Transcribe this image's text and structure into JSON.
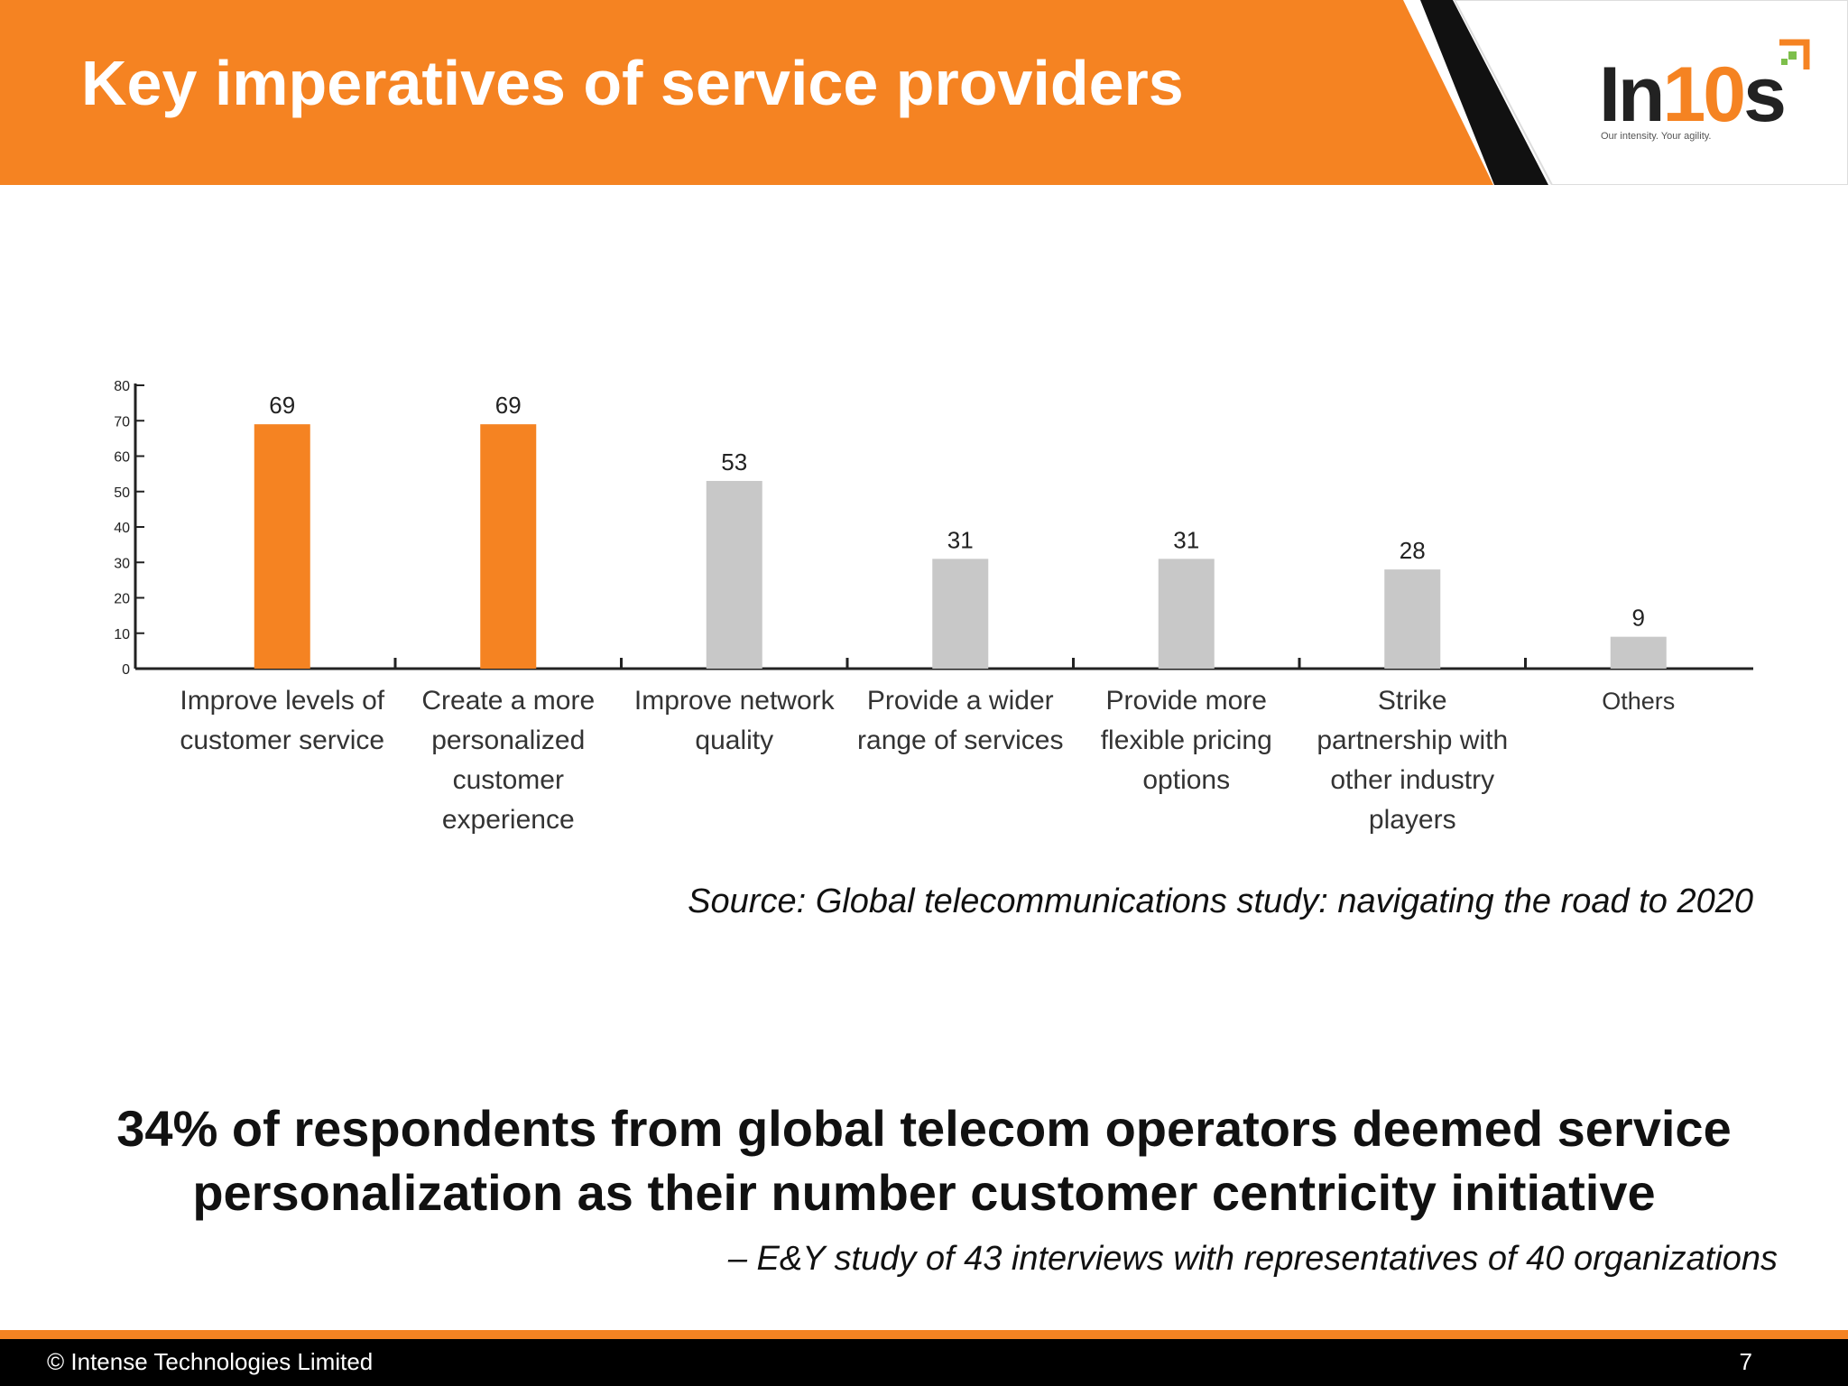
{
  "header": {
    "title": "Key imperatives of service providers",
    "accent_color": "#f58322"
  },
  "logo": {
    "text_dark": "In",
    "text_accent": "10",
    "text_dark_end": "s",
    "tagline": "Our intensity. Your agility."
  },
  "chart_data": {
    "type": "bar",
    "categories": [
      [
        "Improve levels of",
        "customer service"
      ],
      [
        "Create a more",
        "personalized",
        "customer",
        "experience"
      ],
      [
        "Improve network",
        "quality"
      ],
      [
        "Provide a wider",
        "range of services"
      ],
      [
        "Provide more",
        "flexible pricing",
        "options"
      ],
      [
        "Strike",
        "partnership with",
        "other industry",
        "players"
      ],
      [
        "Others"
      ]
    ],
    "values": [
      69,
      69,
      53,
      31,
      31,
      28,
      9
    ],
    "value_labels": [
      "69",
      "69",
      "53",
      "31",
      "31",
      "28",
      "9"
    ],
    "bar_colors": [
      "#f58322",
      "#f58322",
      "#c8c8c8",
      "#c8c8c8",
      "#c8c8c8",
      "#c8c8c8",
      "#c8c8c8"
    ],
    "ylim": [
      0,
      80
    ],
    "yticks": [
      0,
      10,
      20,
      30,
      40,
      50,
      60,
      70,
      80
    ],
    "ytick_labels": [
      "0",
      "10",
      "20",
      "30",
      "40",
      "50",
      "60",
      "70",
      "80"
    ],
    "grid": false,
    "legend": "none"
  },
  "source_note": "Source: Global telecommunications study: navigating the road to 2020",
  "headline": {
    "line1": "34% of respondents from global telecom operators deemed service",
    "line2": "personalization as their number customer centricity initiative"
  },
  "attribution": "– E&Y study of 43 interviews with representatives of 40 organizations",
  "footer": {
    "copyright": "© Intense Technologies Limited",
    "page_number": "7"
  }
}
